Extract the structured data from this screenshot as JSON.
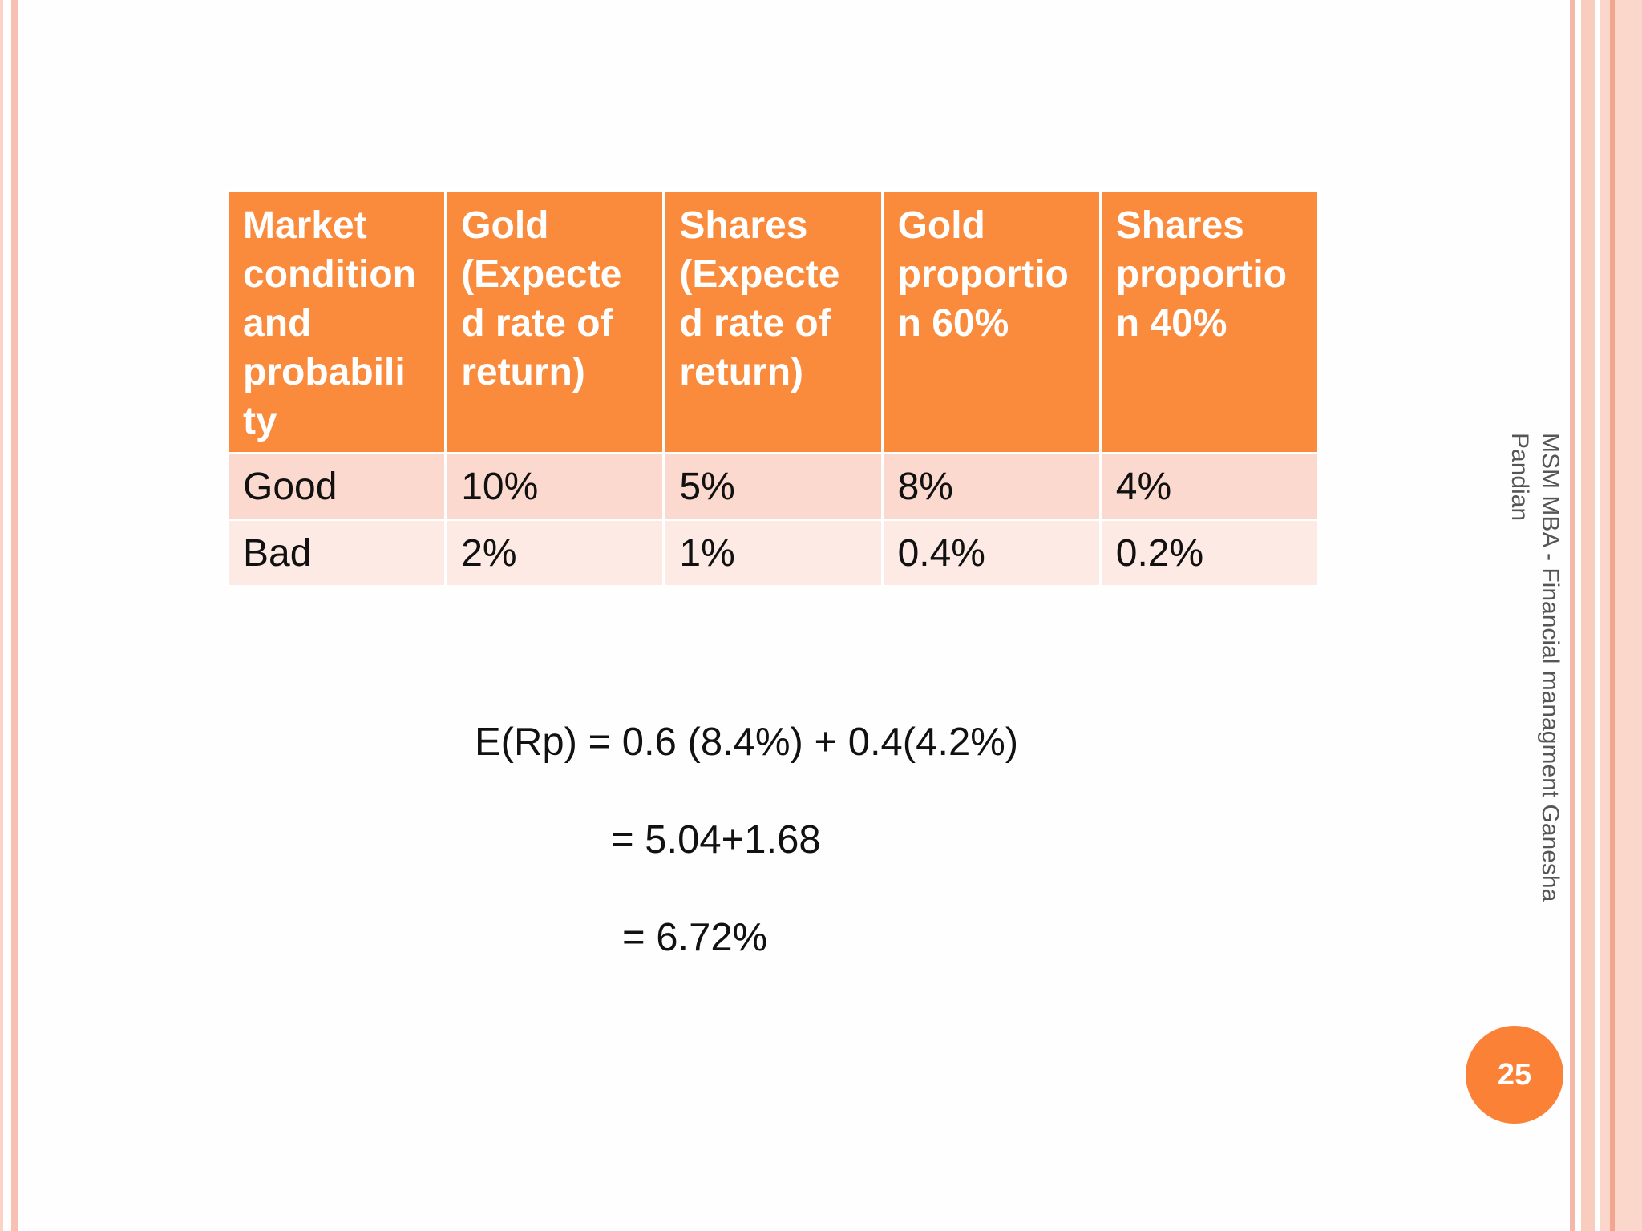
{
  "table": {
    "headers": [
      "Market condition and probabili ty",
      "Gold (Expecte d rate of return)",
      "Shares (Expecte d rate of return)",
      "Gold proportio n  60%",
      "Shares proportio n 40%"
    ],
    "rows": [
      [
        "Good",
        "10%",
        "5%",
        "8%",
        "4%"
      ],
      [
        "Bad",
        "2%",
        "1%",
        "0.4%",
        "0.2%"
      ]
    ]
  },
  "formula": {
    "line1": "E(Rp) = 0.6 (8.4%) + 0.4(4.2%)",
    "line2": "= 5.04+1.68",
    "line3": "= 6.72%"
  },
  "footer": {
    "side_text": "MSM MBA - Financial managment Ganesha Pandian",
    "page_number": "25"
  },
  "colors": {
    "header_bg": "#fb8b3c",
    "row_good_bg": "#fcd9ce",
    "row_bad_bg": "#fdeae5",
    "badge_bg": "#fb8136"
  }
}
